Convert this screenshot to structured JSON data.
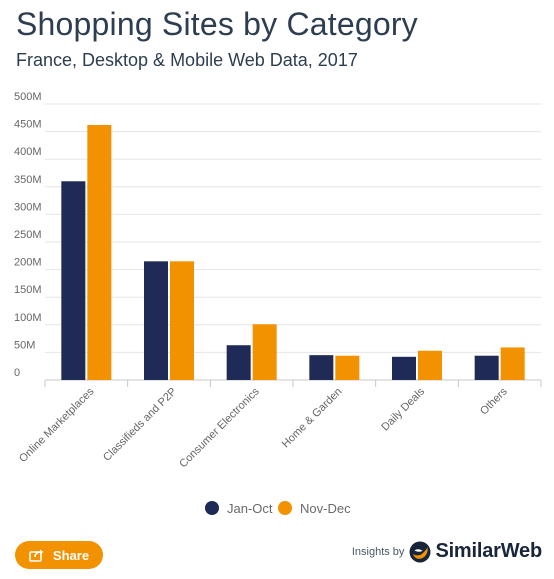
{
  "header": {
    "title": "Shopping Sites by Category",
    "subtitle": "France, Desktop & Mobile Web Data, 2017"
  },
  "chart_data": {
    "type": "bar",
    "title": "Shopping Sites by Category",
    "subtitle": "France, Desktop & Mobile Web Data, 2017",
    "categories": [
      "Online Marketplaces",
      "Classifieds and P2P",
      "Consumer Electronics",
      "Home & Garden",
      "Daily Deals",
      "Others"
    ],
    "series": [
      {
        "name": "Jan-Oct",
        "color": "#1f2a56",
        "values": [
          360,
          215,
          63,
          45,
          42,
          44
        ]
      },
      {
        "name": "Nov-Dec",
        "color": "#f39200",
        "values": [
          462,
          215,
          101,
          44,
          53,
          59
        ]
      }
    ],
    "y_ticks": [
      "0",
      "50M",
      "100M",
      "150M",
      "200M",
      "250M",
      "300M",
      "350M",
      "400M",
      "450M",
      "500M"
    ],
    "y_unit": "M",
    "ylim": [
      0,
      500
    ],
    "xlabel": "",
    "ylabel": "",
    "grid": true,
    "legend_position": "bottom-center"
  },
  "legend": [
    {
      "label": "Jan-Oct",
      "color": "#1f2a56"
    },
    {
      "label": "Nov-Dec",
      "color": "#f39200"
    }
  ],
  "share": {
    "label": "Share",
    "icon": "share-icon"
  },
  "credit": {
    "prefix": "Insights by",
    "brand": "SimilarWeb",
    "icon": "similarweb-logo-icon"
  }
}
